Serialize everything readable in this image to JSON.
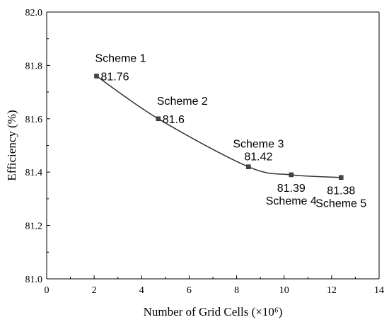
{
  "chart_data": {
    "type": "line",
    "xlabel": "Number of Grid Cells (×10⁶)",
    "ylabel": "Efficiency (%)",
    "xlim": [
      0,
      14
    ],
    "ylim": [
      81.0,
      82.0
    ],
    "xticks": [
      0,
      2,
      4,
      6,
      8,
      10,
      12,
      14
    ],
    "yticks": [
      81.0,
      81.2,
      81.4,
      81.6,
      81.8,
      82.0
    ],
    "grid": false,
    "legend": "none",
    "points": [
      {
        "x": 2.1,
        "y": 81.76,
        "scheme": "Scheme 1",
        "value_label": "81.76",
        "label_pos": "above"
      },
      {
        "x": 4.7,
        "y": 81.6,
        "scheme": "Scheme 2",
        "value_label": "81.6",
        "label_pos": "above"
      },
      {
        "x": 8.5,
        "y": 81.42,
        "scheme": "Scheme 3",
        "value_label": "81.42",
        "label_pos": "above"
      },
      {
        "x": 10.3,
        "y": 81.39,
        "scheme": "Scheme 4",
        "value_label": "81.39",
        "label_pos": "below"
      },
      {
        "x": 12.4,
        "y": 81.38,
        "scheme": "Scheme 5",
        "value_label": "81.38",
        "label_pos": "below"
      }
    ],
    "line_color": "#333333",
    "marker_color": "#444444"
  }
}
